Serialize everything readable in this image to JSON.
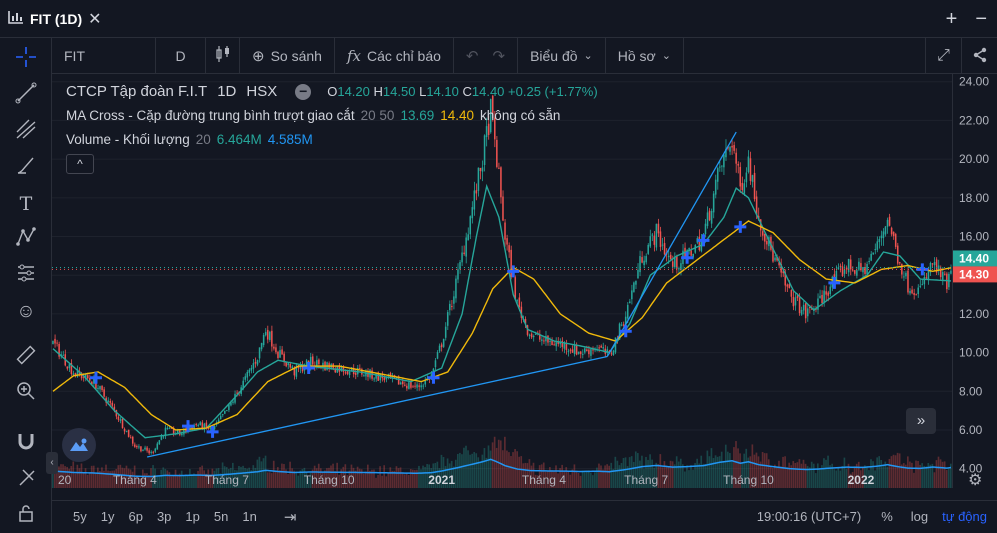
{
  "window": {
    "title": "FIT (1D)"
  },
  "toolbar": {
    "symbol": "FIT",
    "interval": "D",
    "compare": "So sánh",
    "indicators": "Các chỉ báo",
    "chart_type": "Biểu đồ",
    "profile": "Hồ sơ"
  },
  "legend": {
    "name": "CTCP Tập đoàn F.I.T",
    "interval": "1D",
    "exchange": "HSX",
    "o_label": "O",
    "o": "14.20",
    "h_label": "H",
    "h": "14.50",
    "l_label": "L",
    "l": "14.10",
    "c_label": "C",
    "c": "14.40",
    "change": "+0.25 (+1.77%)",
    "ma_label": "MA Cross - Cặp đường trung bình trượt giao cắt",
    "ma_params": "20 50",
    "ma_fast": "13.69",
    "ma_slow": "14.40",
    "ma_note": "không có sẵn",
    "vol_label": "Volume - Khối lượng",
    "vol_param": "20",
    "vol_value": "6.464M",
    "vol_ma": "4.585M"
  },
  "bottombar": {
    "ranges": [
      "5y",
      "1y",
      "6p",
      "3p",
      "1p",
      "5n",
      "1n"
    ],
    "time": "19:00:16 (UTC+7)",
    "pct": "%",
    "log": "log",
    "auto": "tự động"
  },
  "colors": {
    "background": "#131722",
    "up": "#26a69a",
    "down": "#ef5350",
    "ma_fast": "#26a69a",
    "ma_slow": "#f0b90b",
    "trendline": "#2196f3",
    "cross": "#2962ff"
  },
  "chart_data": {
    "type": "candlestick",
    "y_ticks": [
      "24.00",
      "22.00",
      "20.00",
      "18.00",
      "16.00",
      "14.00",
      "12.00",
      "10.00",
      "8.00",
      "6.00",
      "4.00"
    ],
    "ylim": [
      3.0,
      24.4
    ],
    "x_ticks": [
      "20",
      "Tháng 4",
      "Tháng 7",
      "Tháng 10",
      "2021",
      "Tháng 4",
      "Tháng 7",
      "Tháng 10",
      "2022"
    ],
    "x_ticks_bold": [
      "2021",
      "2022"
    ],
    "price_labels": [
      {
        "value": 14.4,
        "text": "14.40",
        "color": "#26a69a"
      },
      {
        "value": 14.3,
        "text": "14.30",
        "color": "#ef5350"
      }
    ],
    "anchors": [
      [
        0,
        10.5
      ],
      [
        10,
        9.0
      ],
      [
        20,
        8.5
      ],
      [
        30,
        7.0
      ],
      [
        40,
        5.2
      ],
      [
        48,
        4.8
      ],
      [
        55,
        6.0
      ],
      [
        62,
        5.8
      ],
      [
        70,
        6.3
      ],
      [
        78,
        6.0
      ],
      [
        85,
        7.0
      ],
      [
        95,
        8.8
      ],
      [
        100,
        9.8
      ],
      [
        104,
        11.2
      ],
      [
        110,
        10.0
      ],
      [
        118,
        9.0
      ],
      [
        126,
        9.5
      ],
      [
        135,
        9.3
      ],
      [
        150,
        9.0
      ],
      [
        165,
        8.6
      ],
      [
        178,
        8.2
      ],
      [
        185,
        8.8
      ],
      [
        190,
        10.5
      ],
      [
        198,
        14.0
      ],
      [
        205,
        17.5
      ],
      [
        210,
        20.0
      ],
      [
        214,
        22.5
      ],
      [
        217,
        20.0
      ],
      [
        221,
        16.0
      ],
      [
        227,
        12.5
      ],
      [
        233,
        11.0
      ],
      [
        240,
        10.6
      ],
      [
        250,
        10.4
      ],
      [
        258,
        10.0
      ],
      [
        266,
        10.3
      ],
      [
        272,
        9.8
      ],
      [
        280,
        12.0
      ],
      [
        288,
        15.0
      ],
      [
        295,
        16.2
      ],
      [
        303,
        14.5
      ],
      [
        310,
        15.0
      ],
      [
        318,
        16.0
      ],
      [
        326,
        19.5
      ],
      [
        332,
        21.0
      ],
      [
        336,
        18.5
      ],
      [
        340,
        20.0
      ],
      [
        345,
        17.0
      ],
      [
        352,
        15.0
      ],
      [
        360,
        13.0
      ],
      [
        368,
        12.0
      ],
      [
        374,
        12.5
      ],
      [
        380,
        13.5
      ],
      [
        388,
        14.5
      ],
      [
        396,
        14.2
      ],
      [
        403,
        15.5
      ],
      [
        408,
        17.0
      ],
      [
        413,
        15.0
      ],
      [
        418,
        13.5
      ],
      [
        424,
        13.2
      ],
      [
        430,
        14.6
      ],
      [
        437,
        13.5
      ],
      [
        440,
        14.4
      ]
    ],
    "ma_fast_anchors": [
      [
        0,
        10.2
      ],
      [
        15,
        8.8
      ],
      [
        30,
        7.0
      ],
      [
        45,
        5.6
      ],
      [
        60,
        5.8
      ],
      [
        75,
        6.1
      ],
      [
        90,
        7.8
      ],
      [
        100,
        9.0
      ],
      [
        110,
        9.6
      ],
      [
        125,
        9.3
      ],
      [
        150,
        9.0
      ],
      [
        175,
        8.5
      ],
      [
        190,
        9.2
      ],
      [
        200,
        12.0
      ],
      [
        207,
        16.0
      ],
      [
        212,
        18.6
      ],
      [
        218,
        17.0
      ],
      [
        225,
        13.0
      ],
      [
        232,
        11.2
      ],
      [
        245,
        10.6
      ],
      [
        260,
        10.3
      ],
      [
        272,
        10.0
      ],
      [
        282,
        11.5
      ],
      [
        292,
        14.0
      ],
      [
        305,
        15.0
      ],
      [
        318,
        15.6
      ],
      [
        328,
        17.0
      ],
      [
        334,
        18.5
      ],
      [
        340,
        18.0
      ],
      [
        350,
        15.8
      ],
      [
        362,
        13.2
      ],
      [
        372,
        12.2
      ],
      [
        385,
        13.2
      ],
      [
        398,
        14.0
      ],
      [
        406,
        15.2
      ],
      [
        414,
        15.0
      ],
      [
        424,
        13.8
      ],
      [
        440,
        13.7
      ]
    ],
    "ma_slow_anchors": [
      [
        0,
        8.0
      ],
      [
        10,
        8.8
      ],
      [
        22,
        9.0
      ],
      [
        35,
        8.2
      ],
      [
        48,
        6.8
      ],
      [
        60,
        6.0
      ],
      [
        75,
        6.1
      ],
      [
        90,
        6.8
      ],
      [
        105,
        8.5
      ],
      [
        120,
        9.3
      ],
      [
        140,
        9.3
      ],
      [
        160,
        8.9
      ],
      [
        180,
        8.5
      ],
      [
        193,
        9.0
      ],
      [
        205,
        11.0
      ],
      [
        215,
        13.3
      ],
      [
        225,
        14.4
      ],
      [
        235,
        13.8
      ],
      [
        248,
        12.0
      ],
      [
        262,
        11.0
      ],
      [
        275,
        10.6
      ],
      [
        288,
        11.8
      ],
      [
        300,
        13.6
      ],
      [
        315,
        14.8
      ],
      [
        330,
        16.0
      ],
      [
        340,
        16.8
      ],
      [
        352,
        16.2
      ],
      [
        365,
        14.8
      ],
      [
        378,
        13.8
      ],
      [
        392,
        13.6
      ],
      [
        405,
        14.3
      ],
      [
        418,
        14.5
      ],
      [
        430,
        14.2
      ],
      [
        440,
        14.4
      ]
    ],
    "crosses": [
      [
        21,
        8.7
      ],
      [
        66,
        6.2
      ],
      [
        78,
        5.9
      ],
      [
        125,
        9.2
      ],
      [
        186,
        8.7
      ],
      [
        225,
        14.2
      ],
      [
        280,
        11.1
      ],
      [
        310,
        14.9
      ],
      [
        318,
        15.8
      ],
      [
        336,
        16.5
      ],
      [
        382,
        13.6
      ],
      [
        425,
        14.3
      ]
    ],
    "trendlines": [
      [
        [
          46,
          4.6
        ],
        [
          271,
          9.8
        ]
      ],
      [
        [
          271,
          9.8
        ],
        [
          334,
          21.4
        ]
      ]
    ],
    "volume_max": 9.0
  }
}
